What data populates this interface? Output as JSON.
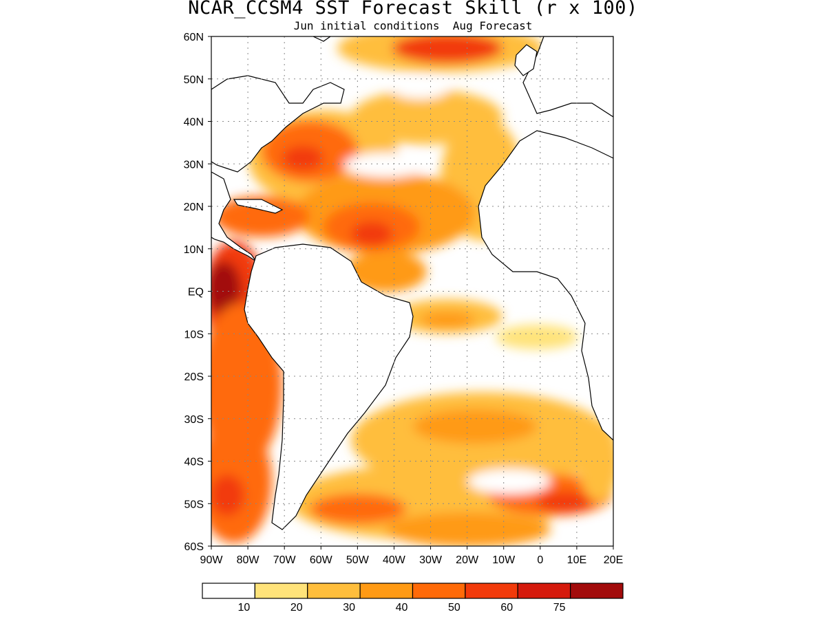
{
  "title": "NCAR_CCSM4 SST Forecast Skill (r x 100)",
  "subtitle": "Jun initial conditions  Aug Forecast",
  "map": {
    "lon_range": [
      -90,
      20
    ],
    "lat_range": [
      -60,
      60
    ],
    "lat_ticks": [
      {
        "value": 60,
        "label": "60N"
      },
      {
        "value": 50,
        "label": "50N"
      },
      {
        "value": 40,
        "label": "40N"
      },
      {
        "value": 30,
        "label": "30N"
      },
      {
        "value": 20,
        "label": "20N"
      },
      {
        "value": 10,
        "label": "10N"
      },
      {
        "value": 0,
        "label": "EQ"
      },
      {
        "value": -10,
        "label": "10S"
      },
      {
        "value": -20,
        "label": "20S"
      },
      {
        "value": -30,
        "label": "30S"
      },
      {
        "value": -40,
        "label": "40S"
      },
      {
        "value": -50,
        "label": "50S"
      },
      {
        "value": -60,
        "label": "60S"
      }
    ],
    "lon_ticks": [
      {
        "value": -90,
        "label": "90W"
      },
      {
        "value": -80,
        "label": "80W"
      },
      {
        "value": -70,
        "label": "70W"
      },
      {
        "value": -60,
        "label": "60W"
      },
      {
        "value": -50,
        "label": "50W"
      },
      {
        "value": -40,
        "label": "40W"
      },
      {
        "value": -30,
        "label": "30W"
      },
      {
        "value": -20,
        "label": "20W"
      },
      {
        "value": -10,
        "label": "10W"
      },
      {
        "value": 0,
        "label": "0"
      },
      {
        "value": 10,
        "label": "10E"
      },
      {
        "value": 20,
        "label": "20E"
      }
    ],
    "grid": true
  },
  "legend": {
    "colors": [
      "#ffffff",
      "#ffe37a",
      "#ffbe3c",
      "#ff9a14",
      "#ff6a08",
      "#f23a0a",
      "#d51a0c",
      "#a20b0b"
    ],
    "labels": [
      "10",
      "20",
      "30",
      "40",
      "50",
      "60",
      "75"
    ]
  }
}
